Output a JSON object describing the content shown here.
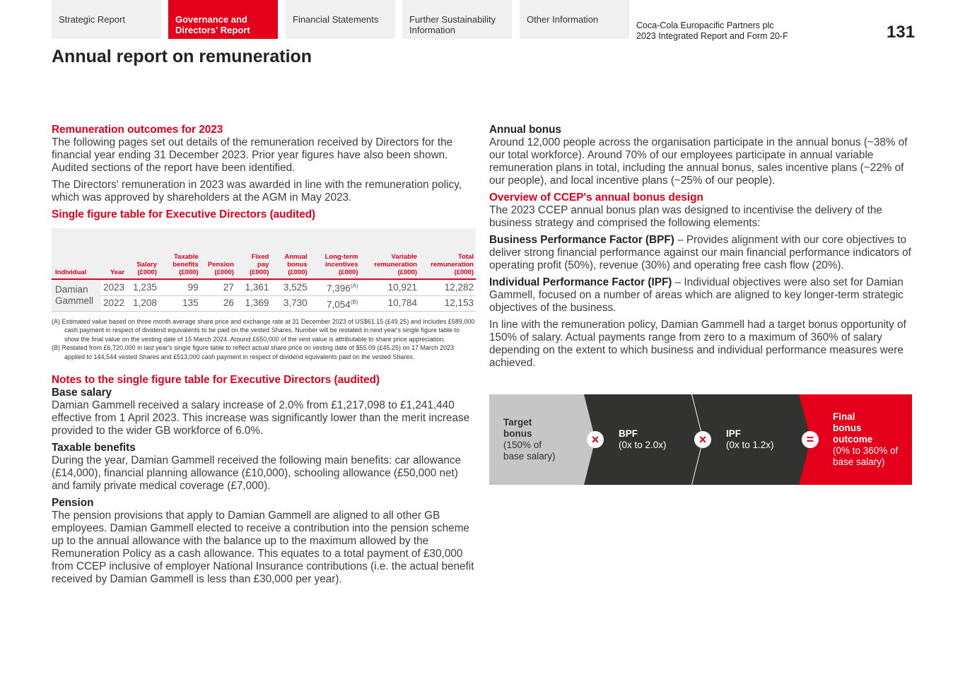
{
  "nav": {
    "tabs": [
      {
        "label": "Strategic Report",
        "active": false
      },
      {
        "label": "Governance and Directors' Report",
        "active": true
      },
      {
        "label": "Financial Statements",
        "active": false
      },
      {
        "label": "Further Sustainability Information",
        "active": false
      },
      {
        "label": "Other Information",
        "active": false
      }
    ],
    "company": "Coca-Cola Europacific Partners plc",
    "report": "2023 Integrated Report and Form 20-F",
    "page_number": "131"
  },
  "page_title": "Annual report on remuneration",
  "left": {
    "h_outcomes": "Remuneration outcomes for 2023",
    "p1": "The following pages set out details of the remuneration received by Directors for the financial year ending 31 December 2023. Prior year figures have also been shown. Audited sections of the report have been identified.",
    "p2": "The Directors' remuneration in 2023 was awarded in line with the remuneration policy, which was approved by shareholders at the AGM in May 2023.",
    "h_single": "Single figure table for Executive Directors (audited)",
    "table": {
      "headers": [
        "Individual",
        "Year",
        "Salary (£000)",
        "Taxable benefits (£000)",
        "Pension (£000)",
        "Fixed pay (£000)",
        "Annual bonus (£000)",
        "Long-term incentives (£000)",
        "Variable remuneration (£000)",
        "Total remuneration (£000)"
      ],
      "individual": "Damian Gammell",
      "rows": [
        [
          "2023",
          "1,235",
          "99",
          "27",
          "1,361",
          "3,525",
          "7,396",
          "10,921",
          "12,282"
        ],
        [
          "2022",
          "1,208",
          "135",
          "26",
          "1,369",
          "3,730",
          "7,054",
          "10,784",
          "12,153"
        ]
      ],
      "lti_notes": [
        "(A)",
        "(B)"
      ]
    },
    "footnotes": [
      "(A) Estimated value based on three month average share price and exchange rate at 31 December 2023 of US$61.15 (£49.25) and includes £589,000 cash payment in respect of dividend equivalents to be paid on the vested Shares. Number will be restated in next year's single figure table to show the final value on the vesting date of 15 March 2024. Around £650,000 of the vest value is attributable to share price appreciation.",
      "(B) Restated from £6,720,000 in last year's single figure table to reflect actual share price on vesting date of $55.09 (£45.25) on 17 March 2023 applied to 144,544 vested Shares and £513,000 cash payment in respect of dividend equivalents paid on the vested Shares."
    ],
    "h_notes": "Notes to the single figure table for Executive Directors (audited)",
    "h_base": "Base salary",
    "p_base": "Damian Gammell received a salary increase of 2.0% from £1,217,098 to £1,241,440 effective from 1 April 2023. This increase was significantly lower than the merit increase provided to the wider GB workforce of 6.0%.",
    "h_tax": "Taxable benefits",
    "p_tax": "During the year, Damian Gammell received the following main benefits: car allowance (£14,000), financial planning allowance (£10,000), schooling allowance (£50,000 net) and family private medical coverage (£7,000).",
    "h_pension": "Pension",
    "p_pension": "The pension provisions that apply to Damian Gammell are aligned to all other GB employees. Damian Gammell elected to receive a contribution into the pension scheme up to the annual allowance with the balance up to the maximum allowed by the Remuneration Policy as a cash allowance. This equates to a total payment of £30,000 from CCEP inclusive of employer National Insurance contributions (i.e. the actual benefit received by Damian Gammell is less than £30,000 per year)."
  },
  "right": {
    "h_bonus": "Annual bonus",
    "p_bonus": "Around 12,000 people across the organisation participate in the annual bonus (~38% of our total workforce). Around 70% of our employees participate in annual variable remuneration plans in total, including the annual bonus, sales incentive plans (~22% of our people), and local incentive plans (~25% of our people).",
    "h_overview": "Overview of CCEP's annual bonus design",
    "p_overview": "The 2023 CCEP annual bonus plan was designed to incentivise the delivery of the business strategy and comprised the following elements:",
    "bpf_label": "Business Performance Factor (BPF)",
    "bpf_text": " – Provides alignment with our core objectives to deliver strong financial performance against our main financial performance indicators of operating profit (50%), revenue (30%) and operating free cash flow (20%).",
    "ipf_label": "Individual Performance Factor (IPF)",
    "ipf_text": " – Individual objectives were also set for Damian Gammell, focused on a number of areas which are aligned to key longer-term strategic objectives of the business.",
    "p_policy": "In line with the remuneration policy, Damian Gammell had a target bonus opportunity of 150% of salary. Actual payments range from zero to a maximum of 360% of salary depending on the extent to which business and individual performance measures were achieved.",
    "diagram": {
      "target_title": "Target bonus",
      "target_sub": "(150% of base salary)",
      "bpf_title": "BPF",
      "bpf_sub": "(0x to 2.0x)",
      "ipf_title": "IPF",
      "ipf_sub": "(0x to 1.2x)",
      "final_title": "Final bonus outcome",
      "final_sub": "(0% to 360% of base salary)",
      "op_times": "×",
      "op_equals": "="
    }
  },
  "colors": {
    "accent": "#e4001b",
    "dark": "#323230",
    "grey": "#c6c6c6"
  }
}
